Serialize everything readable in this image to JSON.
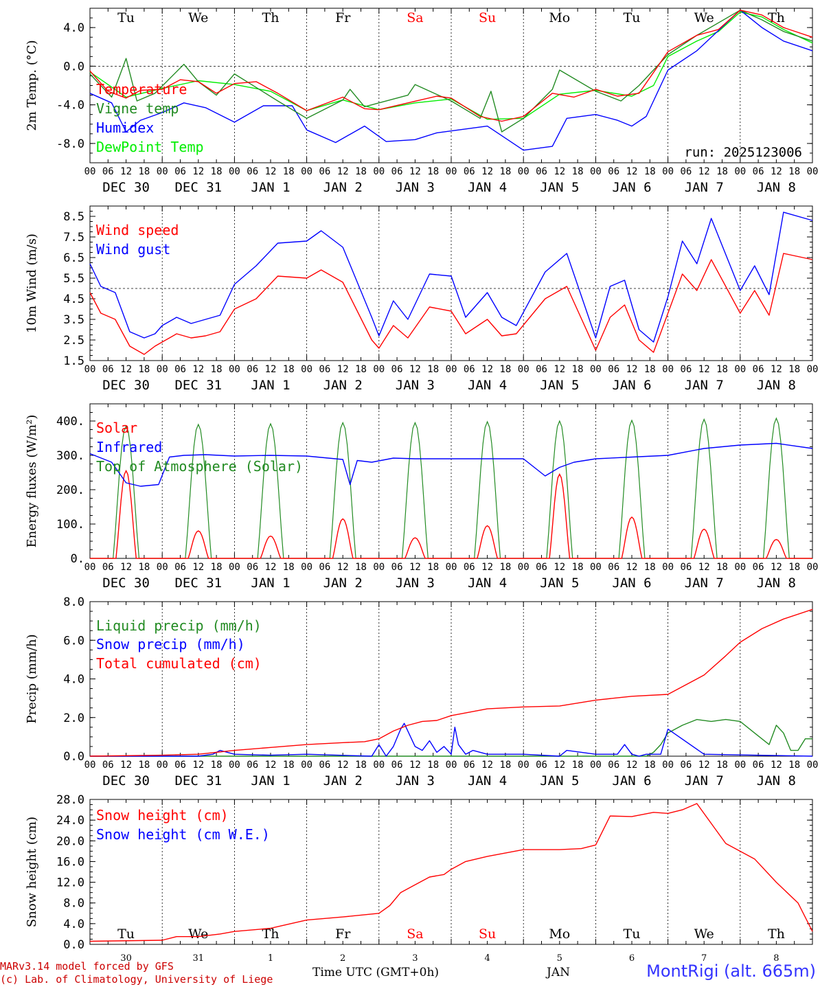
{
  "run_label": "run: 2025123006",
  "station_label": "MontRigi (alt. 665m)",
  "credit_line1": "MARv3.14 model forced by GFS",
  "credit_line2": "(c) Lab. of Climatology, University of Liege",
  "xaxis_title": "Time UTC (GMT+0h)",
  "xaxis_month": "JAN",
  "hour_ticks": [
    "00",
    "06",
    "12",
    "18"
  ],
  "day_labels": [
    "DEC 30",
    "DEC 31",
    "JAN  1",
    "JAN  2",
    "JAN  3",
    "JAN  4",
    "JAN  5",
    "JAN  6",
    "JAN  7",
    "JAN  8"
  ],
  "weekday_labels": [
    "Tu",
    "We",
    "Th",
    "Fr",
    "Sa",
    "Su",
    "Mo",
    "Tu",
    "We",
    "Th"
  ],
  "weekend_indices": [
    4,
    5
  ],
  "day_numbers": [
    "30",
    "31",
    "1",
    "2",
    "3",
    "4",
    "5",
    "6",
    "7",
    "8"
  ],
  "colors": {
    "red": "#ff0000",
    "green": "#228b22",
    "blue": "#0000ff",
    "lime": "#00ee00",
    "station": "#3333ff",
    "credit": "#cc0000"
  },
  "chart_data": [
    {
      "type": "line",
      "id": "temp",
      "ylabel": "2m Temp. (°C)",
      "ylim": [
        -10,
        6
      ],
      "yticks": [
        4,
        0,
        -4,
        -8
      ],
      "tick_labels": [
        "4.0",
        "0.0",
        "-4.0",
        "-8.0"
      ],
      "ref_line": 0,
      "x_days": [
        0,
        10
      ],
      "series": [
        {
          "name": "Temperature",
          "color": "red",
          "x": [
            0,
            0.25,
            0.5,
            0.7,
            1,
            1.25,
            1.5,
            1.75,
            2,
            2.3,
            2.6,
            3,
            3.5,
            3.8,
            4,
            4.4,
            4.8,
            5,
            5.4,
            5.7,
            6,
            6.4,
            6.7,
            7,
            7.3,
            7.6,
            8,
            8.4,
            8.7,
            9,
            9.3,
            9.6,
            10
          ],
          "y": [
            -0.5,
            -2.6,
            -3.3,
            -2.5,
            -2.4,
            -1.4,
            -1.6,
            -2.8,
            -1.8,
            -1.6,
            -2.8,
            -4.6,
            -3.2,
            -4.4,
            -4.5,
            -3.8,
            -3.1,
            -3.3,
            -5.2,
            -5.7,
            -5.2,
            -2.8,
            -3.2,
            -2.4,
            -3.1,
            -2.8,
            1.5,
            3.2,
            3.8,
            5.8,
            5.3,
            4.0,
            3.0
          ]
        },
        {
          "name": "Vigne temp",
          "color": "green",
          "x": [
            0,
            0.3,
            0.5,
            0.65,
            0.9,
            1.3,
            1.5,
            1.75,
            2,
            2.3,
            2.6,
            3,
            3.5,
            3.6,
            3.8,
            4.4,
            4.5,
            5,
            5.4,
            5.55,
            5.7,
            6,
            6.4,
            6.5,
            7,
            7.35,
            7.6,
            8,
            8.4,
            9,
            9.3,
            9.6,
            10
          ],
          "y": [
            -0.8,
            -3.2,
            0.8,
            -3.6,
            -2.8,
            0.2,
            -1.6,
            -3.0,
            -0.8,
            -2.2,
            -3.6,
            -5.4,
            -3.5,
            -2.4,
            -4.2,
            -3.0,
            -1.9,
            -3.6,
            -5.4,
            -2.6,
            -6.8,
            -5.4,
            -2.4,
            -0.4,
            -2.6,
            -3.6,
            -2.0,
            1.2,
            3.2,
            5.8,
            4.8,
            3.6,
            2.6
          ]
        },
        {
          "name": "Humidex",
          "color": "blue",
          "x": [
            0,
            0.3,
            0.5,
            0.7,
            1,
            1.3,
            1.6,
            2,
            2.4,
            2.8,
            3,
            3.4,
            3.8,
            4.1,
            4.5,
            4.8,
            5.2,
            5.5,
            6,
            6.4,
            6.6,
            7,
            7.3,
            7.5,
            7.7,
            8,
            8.4,
            9,
            9.3,
            9.6,
            10
          ],
          "y": [
            -2.8,
            -3.8,
            -6.8,
            -5.6,
            -4.8,
            -3.8,
            -4.3,
            -5.8,
            -4.1,
            -4.1,
            -6.6,
            -7.9,
            -6.2,
            -7.8,
            -7.6,
            -6.9,
            -6.5,
            -6.2,
            -8.7,
            -8.3,
            -5.4,
            -5.0,
            -5.6,
            -6.2,
            -5.2,
            -0.4,
            1.6,
            5.8,
            4.0,
            2.6,
            1.6
          ]
        },
        {
          "name": "DewPoint Temp",
          "color": "lime",
          "x": [
            0,
            0.5,
            1,
            1.5,
            2,
            2.5,
            3,
            3.5,
            4,
            4.5,
            5,
            5.5,
            6,
            6.5,
            7,
            7.5,
            7.8,
            8,
            8.4,
            8.7,
            9,
            9.3,
            9.6,
            10
          ],
          "y": [
            -0.6,
            -3.2,
            -2.3,
            -1.5,
            -1.9,
            -2.6,
            -4.6,
            -3.5,
            -4.5,
            -3.8,
            -3.4,
            -5.5,
            -5.4,
            -2.9,
            -2.5,
            -3.1,
            -2.0,
            1.0,
            2.6,
            3.6,
            5.6,
            5.1,
            3.8,
            2.4
          ]
        }
      ]
    },
    {
      "type": "line",
      "id": "wind",
      "ylabel": "10m Wind (m/s)",
      "ylim": [
        1.5,
        9
      ],
      "yticks": [
        8.5,
        7.5,
        6.5,
        5.5,
        4.5,
        3.5,
        2.5,
        1.5
      ],
      "tick_labels": [
        "8.5",
        "7.5",
        "6.5",
        "5.5",
        "4.5",
        "3.5",
        "2.5",
        "1.5"
      ],
      "ref_line": 5,
      "x_days": [
        0,
        10
      ],
      "series": [
        {
          "name": "Wind speed",
          "color": "red",
          "x": [
            0,
            0.15,
            0.35,
            0.55,
            0.75,
            0.9,
            1,
            1.2,
            1.4,
            1.6,
            1.8,
            2,
            2.3,
            2.6,
            3,
            3.2,
            3.5,
            3.9,
            4,
            4.2,
            4.4,
            4.7,
            5,
            5.2,
            5.5,
            5.7,
            5.9,
            6.3,
            6.6,
            7,
            7.2,
            7.4,
            7.6,
            7.8,
            8,
            8.2,
            8.4,
            8.6,
            9,
            9.2,
            9.4,
            9.6,
            10
          ],
          "y": [
            4.8,
            3.8,
            3.5,
            2.2,
            1.8,
            2.2,
            2.4,
            2.8,
            2.6,
            2.7,
            2.9,
            4.0,
            4.5,
            5.6,
            5.5,
            5.9,
            5.3,
            2.5,
            2.1,
            3.2,
            2.6,
            4.1,
            3.9,
            2.8,
            3.5,
            2.7,
            2.8,
            4.5,
            5.1,
            2.0,
            3.6,
            4.2,
            2.5,
            1.9,
            3.8,
            5.7,
            4.9,
            6.4,
            3.8,
            4.9,
            3.7,
            6.7,
            6.4
          ]
        },
        {
          "name": "Wind gust",
          "color": "blue",
          "x": [
            0,
            0.15,
            0.35,
            0.55,
            0.75,
            0.9,
            1,
            1.2,
            1.4,
            1.6,
            1.8,
            2,
            2.3,
            2.6,
            3,
            3.2,
            3.5,
            3.9,
            4,
            4.2,
            4.4,
            4.7,
            5,
            5.2,
            5.5,
            5.7,
            5.9,
            6.3,
            6.6,
            7,
            7.2,
            7.4,
            7.6,
            7.8,
            8,
            8.2,
            8.4,
            8.6,
            9,
            9.2,
            9.4,
            9.6,
            10
          ],
          "y": [
            6.2,
            5.1,
            4.8,
            2.9,
            2.6,
            2.8,
            3.2,
            3.6,
            3.3,
            3.5,
            3.7,
            5.2,
            6.1,
            7.2,
            7.3,
            7.8,
            7.0,
            3.6,
            2.7,
            4.4,
            3.5,
            5.7,
            5.6,
            3.6,
            4.8,
            3.6,
            3.2,
            5.8,
            6.7,
            2.6,
            5.1,
            5.4,
            3.0,
            2.4,
            4.6,
            7.3,
            6.2,
            8.4,
            4.9,
            6.1,
            4.7,
            8.7,
            8.3
          ]
        }
      ]
    },
    {
      "type": "line",
      "id": "energy",
      "ylabel": "Energy fluxes (W/m²)",
      "ylim": [
        0,
        450
      ],
      "yticks": [
        400,
        300,
        200,
        100,
        0
      ],
      "tick_labels": [
        "400.",
        "300.",
        "200.",
        "100.",
        "0."
      ],
      "x_days": [
        0,
        10
      ],
      "daily_peaks": {
        "solar": [
          255,
          80,
          65,
          115,
          60,
          95,
          245,
          120,
          85,
          55
        ],
        "toa": [
          385,
          390,
          392,
          395,
          395,
          398,
          400,
          402,
          405,
          408
        ]
      },
      "series": [
        {
          "name": "Solar",
          "color": "red"
        },
        {
          "name": "Infrared",
          "color": "blue",
          "x": [
            0,
            0.3,
            0.5,
            0.7,
            0.95,
            1.1,
            1.3,
            1.6,
            2,
            2.5,
            3,
            3.5,
            3.6,
            3.7,
            3.9,
            4.2,
            4.5,
            5,
            5.5,
            6,
            6.3,
            6.5,
            6.7,
            7,
            7.5,
            8,
            8.5,
            9,
            9.5,
            10
          ],
          "y": [
            305,
            280,
            220,
            210,
            215,
            295,
            300,
            302,
            298,
            300,
            298,
            288,
            215,
            285,
            280,
            292,
            290,
            290,
            290,
            290,
            240,
            265,
            280,
            290,
            295,
            300,
            320,
            330,
            335,
            320
          ]
        },
        {
          "name": "Top of Atmosphere (Solar)",
          "color": "green"
        }
      ]
    },
    {
      "type": "line",
      "id": "precip",
      "ylabel": "Precip (mm/h)",
      "ylim": [
        0,
        8
      ],
      "yticks": [
        8,
        6,
        4,
        2,
        0
      ],
      "tick_labels": [
        "8.0",
        "6.0",
        "4.0",
        "2.0",
        "0.0"
      ],
      "x_days": [
        0,
        10
      ],
      "series": [
        {
          "name": "Liquid precip (mm/h)",
          "color": "green",
          "x": [
            0,
            7.7,
            7.8,
            7.9,
            8,
            8.2,
            8.4,
            8.6,
            8.8,
            9,
            9.2,
            9.4,
            9.5,
            9.6,
            9.7,
            9.8,
            9.9,
            10
          ],
          "y": [
            0,
            0,
            0.2,
            0.6,
            1.2,
            1.6,
            1.9,
            1.8,
            1.9,
            1.8,
            1.2,
            0.6,
            1.6,
            1.2,
            0.3,
            0.3,
            0.9,
            0.9
          ]
        },
        {
          "name": "Snow precip (mm/h)",
          "color": "blue",
          "x": [
            0,
            1.5,
            1.7,
            1.8,
            2,
            2.5,
            3,
            3.9,
            4,
            4.1,
            4.2,
            4.3,
            4.35,
            4.5,
            4.6,
            4.7,
            4.8,
            4.9,
            5,
            5.05,
            5.1,
            5.2,
            5.3,
            5.5,
            6,
            6.5,
            6.6,
            7,
            7.3,
            7.4,
            7.5,
            7.6,
            7.7,
            7.9,
            8,
            8.5,
            10
          ],
          "y": [
            0,
            0,
            0.1,
            0.3,
            0.1,
            0.05,
            0.1,
            0,
            0.6,
            0,
            0.5,
            1.4,
            1.7,
            0.5,
            0.3,
            0.8,
            0.2,
            0.5,
            0.1,
            1.5,
            0.6,
            0.1,
            0.3,
            0.1,
            0.1,
            0,
            0.3,
            0.1,
            0.1,
            0.6,
            0.1,
            0,
            0.1,
            0.1,
            1.4,
            0.1,
            0
          ]
        },
        {
          "name": "Total cumulated (cm)",
          "color": "red",
          "x": [
            0,
            1,
            1.5,
            2,
            2.5,
            3,
            3.5,
            3.8,
            4,
            4.2,
            4.4,
            4.6,
            4.8,
            5,
            5.5,
            6,
            6.5,
            7,
            7.5,
            8,
            8.5,
            8.8,
            9,
            9.3,
            9.6,
            10
          ],
          "y": [
            0,
            0.05,
            0.1,
            0.3,
            0.45,
            0.6,
            0.7,
            0.75,
            0.9,
            1.3,
            1.6,
            1.8,
            1.85,
            2.1,
            2.45,
            2.55,
            2.6,
            2.9,
            3.1,
            3.2,
            4.2,
            5.2,
            5.9,
            6.6,
            7.1,
            7.6
          ]
        }
      ]
    },
    {
      "type": "line",
      "id": "snow",
      "ylabel": "Snow height (cm)",
      "ylim": [
        0,
        28
      ],
      "yticks": [
        28,
        24,
        20,
        16,
        12,
        8,
        4,
        0
      ],
      "tick_labels": [
        "28.0",
        "24.0",
        "20.0",
        "16.0",
        "12.0",
        "8.0",
        "4.0",
        "0.0"
      ],
      "x_days": [
        0,
        10
      ],
      "series": [
        {
          "name": "Snow height (cm)",
          "color": "red",
          "x": [
            0,
            1,
            1.2,
            1.5,
            1.8,
            2,
            2.5,
            3,
            3.5,
            4,
            4.15,
            4.3,
            4.5,
            4.7,
            4.9,
            5,
            5.2,
            5.5,
            6,
            6.5,
            6.8,
            7,
            7.2,
            7.5,
            7.8,
            8,
            8.2,
            8.4,
            8.8,
            9.2,
            9.5,
            9.8,
            10
          ],
          "y": [
            0.6,
            0.8,
            1.5,
            1.5,
            2.0,
            2.5,
            3.1,
            4.7,
            5.3,
            6.0,
            7.5,
            10.0,
            11.5,
            13.0,
            13.5,
            14.5,
            16.0,
            17.0,
            18.3,
            18.3,
            18.5,
            19.2,
            24.8,
            24.7,
            25.5,
            25.3,
            26.0,
            27.2,
            19.5,
            16.5,
            12.0,
            8.0,
            2.5
          ]
        },
        {
          "name": "Snow height (cm W.E.)",
          "color": "blue"
        }
      ]
    }
  ]
}
